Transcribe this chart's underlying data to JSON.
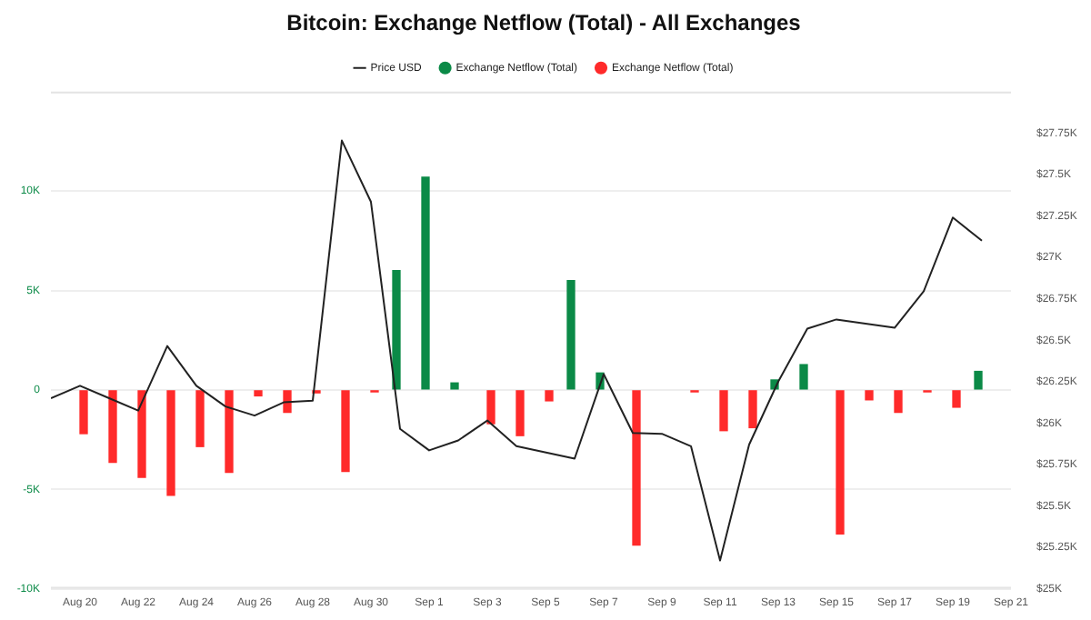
{
  "chart_data": {
    "type": "bar",
    "title": "Bitcoin: Exchange Netflow (Total) - All Exchanges",
    "x": [
      "--08-20",
      "--08-21",
      "--08-22",
      "--08-23",
      "--08-24",
      "--08-25",
      "--08-26",
      "--08-27",
      "--08-28",
      "--08-29",
      "--08-30",
      "--08-31",
      "--09-01",
      "--09-02",
      "--09-03",
      "--09-04",
      "--09-05",
      "--09-06",
      "--09-07",
      "--09-08",
      "--09-09",
      "--09-10",
      "--09-11",
      "--09-12",
      "--09-13",
      "--09-14",
      "--09-15",
      "--09-16",
      "--09-17",
      "--09-18",
      "--09-19",
      "--09-20"
    ],
    "xlim": [
      "--08-19",
      "--09-21"
    ],
    "xticks": [
      {
        "value": "--08-20",
        "label": "Aug 20"
      },
      {
        "value": "--08-22",
        "label": "Aug 22"
      },
      {
        "value": "--08-24",
        "label": "Aug 24"
      },
      {
        "value": "--08-26",
        "label": "Aug 26"
      },
      {
        "value": "--08-28",
        "label": "Aug 28"
      },
      {
        "value": "--08-30",
        "label": "Aug 30"
      },
      {
        "value": "--09-01",
        "label": "Sep 1"
      },
      {
        "value": "--09-03",
        "label": "Sep 3"
      },
      {
        "value": "--09-05",
        "label": "Sep 5"
      },
      {
        "value": "--09-07",
        "label": "Sep 7"
      },
      {
        "value": "--09-09",
        "label": "Sep 9"
      },
      {
        "value": "--09-11",
        "label": "Sep 11"
      },
      {
        "value": "--09-13",
        "label": "Sep 13"
      },
      {
        "value": "--09-15",
        "label": "Sep 15"
      },
      {
        "value": "--09-17",
        "label": "Sep 17"
      },
      {
        "value": "--09-19",
        "label": "Sep 19"
      },
      {
        "value": "--09-21",
        "label": "Sep 21"
      }
    ],
    "ylim": [
      -10000,
      15000
    ],
    "yticks": [
      {
        "value": -10000,
        "label": "-10K"
      },
      {
        "value": -5000,
        "label": "-5K"
      },
      0,
      {
        "value": 5000,
        "label": "5K"
      },
      {
        "value": 10000,
        "label": "10K"
      }
    ],
    "y2lim": [
      25000,
      28000
    ],
    "y2ticks": [
      {
        "value": 25000,
        "label": "$25K"
      },
      {
        "value": 25250,
        "label": "$25.25K"
      },
      {
        "value": 25500,
        "label": "$25.5K"
      },
      {
        "value": 25750,
        "label": "$25.75K"
      },
      {
        "value": 26000,
        "label": "$26K"
      },
      {
        "value": 26250,
        "label": "$26.25K"
      },
      {
        "value": 26500,
        "label": "$26.5K"
      },
      {
        "value": 26750,
        "label": "$26.75K"
      },
      {
        "value": 27000,
        "label": "$27K"
      },
      {
        "value": 27250,
        "label": "$27.25K"
      },
      {
        "value": 27500,
        "label": "$27.5K"
      },
      {
        "value": 27750,
        "label": "$27.75K"
      }
    ],
    "grid": "y",
    "legend": "top",
    "series": [
      {
        "name": "Price USD",
        "type": "line",
        "axis": "y2",
        "color": "#222222",
        "marker": "none",
        "line_style": "solid",
        "x": [
          "--08-19",
          "--08-20",
          "--08-21",
          "--08-22",
          "--08-23",
          "--08-24",
          "--08-25",
          "--08-26",
          "--08-27",
          "--08-28",
          "--08-29",
          "--08-30",
          "--08-31",
          "--09-01",
          "--09-02",
          "--09-03",
          "--09-04",
          "--09-06",
          "--09-07",
          "--09-08",
          "--09-09",
          "--09-10",
          "--09-11",
          "--09-12",
          "--09-13",
          "--09-14",
          "--09-15",
          "--09-17",
          "--09-18",
          "--09-19",
          "--09-20"
        ],
        "values": [
          26150,
          26225,
          26150,
          26075,
          26465,
          26225,
          26100,
          26045,
          26125,
          26135,
          27705,
          27335,
          25965,
          25835,
          25895,
          26015,
          25860,
          25785,
          26295,
          25940,
          25935,
          25860,
          25170,
          25870,
          26250,
          26570,
          26625,
          26575,
          26795,
          27240,
          27100
        ]
      },
      {
        "name": "Exchange Netflow (Total)",
        "color": "#0b8a47",
        "values": [
          null,
          null,
          null,
          null,
          null,
          null,
          null,
          null,
          null,
          null,
          null,
          6000,
          10700,
          350,
          null,
          null,
          null,
          5500,
          850,
          null,
          null,
          null,
          null,
          null,
          500,
          1270,
          null,
          null,
          null,
          null,
          null,
          930
        ]
      },
      {
        "name": "Exchange Netflow (Total)",
        "color": "#ff2a2a",
        "values": [
          -2200,
          -3650,
          -4400,
          -5300,
          -2850,
          -4150,
          -300,
          -1130,
          -150,
          -4100,
          -100,
          null,
          null,
          null,
          -1700,
          -2300,
          -550,
          null,
          null,
          -7800,
          null,
          -100,
          -2050,
          -1900,
          null,
          null,
          -7250,
          -500,
          -1130,
          -100,
          -870,
          null
        ]
      }
    ]
  }
}
